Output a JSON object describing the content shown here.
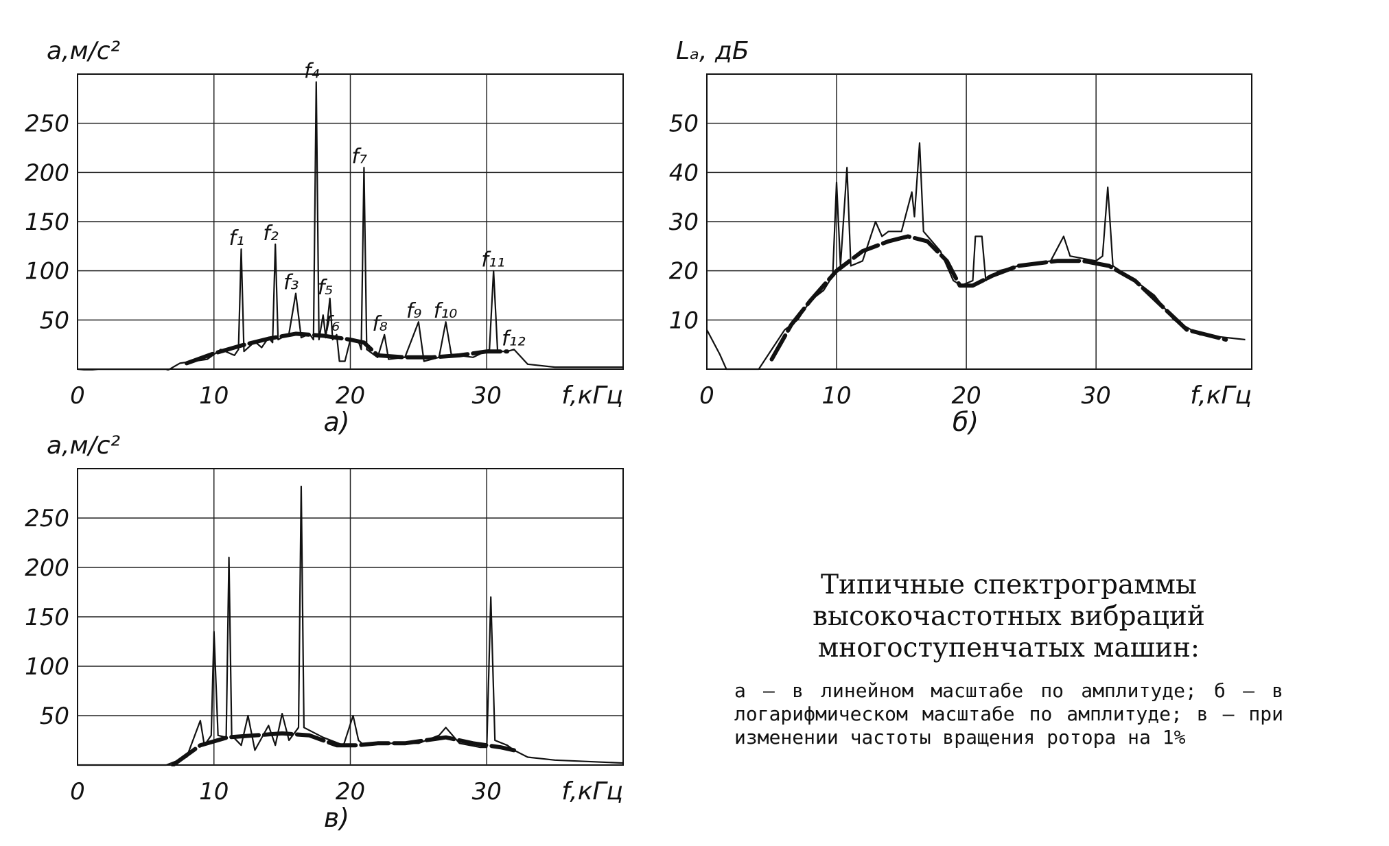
{
  "caption": {
    "title": "Типичные спектрограммы высокочастотных вибраций многоступенчатых машин:",
    "body": "а — в линейном масштабе по амплитуде; б — в логарифмическом масштабе по амплитуде; в — при изменении частоты вращения ротора на 1%"
  },
  "chart_data": [
    {
      "id": "a",
      "type": "line",
      "label": "а)",
      "ylabel": "a,м/с²",
      "xlabel": "f,кГц",
      "xlim": [
        0,
        40
      ],
      "ylim": [
        0,
        300
      ],
      "xticks": [
        0,
        10,
        20,
        30
      ],
      "yticks": [
        50,
        100,
        150,
        200,
        250
      ],
      "grid": true,
      "peaks": [
        {
          "label": "f₁",
          "x": 12,
          "y": 122
        },
        {
          "label": "f₂",
          "x": 14.5,
          "y": 127
        },
        {
          "label": "f₃",
          "x": 16,
          "y": 77
        },
        {
          "label": "f₄",
          "x": 17.5,
          "y": 292
        },
        {
          "label": "f₅",
          "x": 18.5,
          "y": 72
        },
        {
          "label": "f₆",
          "x": 19,
          "y": 35
        },
        {
          "label": "f₇",
          "x": 21,
          "y": 205
        },
        {
          "label": "f₈",
          "x": 22.5,
          "y": 35
        },
        {
          "label": "f₉",
          "x": 25,
          "y": 48
        },
        {
          "label": "f₁₀",
          "x": 27,
          "y": 48
        },
        {
          "label": "f₁₁",
          "x": 30.5,
          "y": 100
        },
        {
          "label": "f₁₂",
          "x": 32,
          "y": 20
        }
      ],
      "envelope": [
        [
          8,
          6
        ],
        [
          10,
          16
        ],
        [
          12,
          24
        ],
        [
          14,
          31
        ],
        [
          16,
          36
        ],
        [
          18,
          34
        ],
        [
          20,
          30
        ],
        [
          21,
          27
        ],
        [
          22,
          14
        ],
        [
          24,
          12
        ],
        [
          26,
          12
        ],
        [
          28,
          14
        ],
        [
          30,
          18
        ],
        [
          31.5,
          18
        ]
      ],
      "spectrum": [
        [
          0,
          0
        ],
        [
          1.5,
          -2
        ],
        [
          6.5,
          -2
        ],
        [
          7.5,
          6
        ],
        [
          8.5,
          8
        ],
        [
          9.5,
          10
        ],
        [
          10.5,
          20
        ],
        [
          11.5,
          14
        ],
        [
          11.8,
          20
        ],
        [
          12,
          122
        ],
        [
          12.2,
          18
        ],
        [
          13,
          28
        ],
        [
          13.5,
          22
        ],
        [
          14,
          32
        ],
        [
          14.3,
          27
        ],
        [
          14.5,
          127
        ],
        [
          14.7,
          30
        ],
        [
          15.5,
          36
        ],
        [
          16,
          77
        ],
        [
          16.4,
          32
        ],
        [
          17,
          36
        ],
        [
          17.3,
          30
        ],
        [
          17.5,
          292
        ],
        [
          17.7,
          30
        ],
        [
          18,
          55
        ],
        [
          18.2,
          32
        ],
        [
          18.5,
          72
        ],
        [
          18.7,
          30
        ],
        [
          19,
          35
        ],
        [
          19.2,
          8
        ],
        [
          19.6,
          8
        ],
        [
          20,
          30
        ],
        [
          20.6,
          28
        ],
        [
          20.8,
          20
        ],
        [
          21,
          205
        ],
        [
          21.2,
          20
        ],
        [
          22,
          12
        ],
        [
          22.5,
          35
        ],
        [
          22.8,
          10
        ],
        [
          24,
          12
        ],
        [
          25,
          48
        ],
        [
          25.4,
          8
        ],
        [
          26.5,
          12
        ],
        [
          27,
          48
        ],
        [
          27.4,
          15
        ],
        [
          29,
          12
        ],
        [
          30.2,
          20
        ],
        [
          30.5,
          100
        ],
        [
          30.8,
          18
        ],
        [
          31.5,
          18
        ],
        [
          32,
          20
        ],
        [
          33,
          5
        ],
        [
          35,
          2
        ],
        [
          40,
          2
        ]
      ]
    },
    {
      "id": "b",
      "type": "line",
      "label": "б)",
      "ylabel": "Lₐ, дБ",
      "xlabel": "f,кГц",
      "xlim": [
        0,
        42
      ],
      "ylim": [
        0,
        60
      ],
      "xticks": [
        0,
        10,
        20,
        30
      ],
      "yticks": [
        10,
        20,
        30,
        40,
        50
      ],
      "grid": true,
      "envelope": [
        [
          5,
          2
        ],
        [
          6.5,
          9
        ],
        [
          8,
          14
        ],
        [
          10,
          20
        ],
        [
          12,
          24
        ],
        [
          14,
          26
        ],
        [
          15.5,
          27
        ],
        [
          17,
          26
        ],
        [
          18.5,
          22
        ],
        [
          19.5,
          17
        ],
        [
          20.5,
          17
        ],
        [
          22,
          19
        ],
        [
          24,
          21
        ],
        [
          27,
          22
        ],
        [
          29,
          22
        ],
        [
          31,
          21
        ],
        [
          33,
          18
        ],
        [
          35,
          13
        ],
        [
          37,
          8
        ],
        [
          40,
          6
        ]
      ],
      "spectrum": [
        [
          0,
          8
        ],
        [
          1,
          3
        ],
        [
          1.5,
          0
        ],
        [
          4,
          0
        ],
        [
          6,
          8
        ],
        [
          7,
          10
        ],
        [
          8,
          14
        ],
        [
          9,
          16
        ],
        [
          9.7,
          19
        ],
        [
          10,
          38
        ],
        [
          10.3,
          21
        ],
        [
          10.8,
          41
        ],
        [
          11.1,
          21
        ],
        [
          12,
          22
        ],
        [
          13,
          30
        ],
        [
          13.5,
          27
        ],
        [
          14,
          28
        ],
        [
          15,
          28
        ],
        [
          15.8,
          36
        ],
        [
          16,
          31
        ],
        [
          16.4,
          46
        ],
        [
          16.7,
          28
        ],
        [
          18,
          24
        ],
        [
          19,
          18
        ],
        [
          19.6,
          17
        ],
        [
          20.5,
          18
        ],
        [
          20.7,
          27
        ],
        [
          21.2,
          27
        ],
        [
          21.5,
          18
        ],
        [
          22.5,
          20
        ],
        [
          24,
          21
        ],
        [
          26.5,
          22
        ],
        [
          27.5,
          27
        ],
        [
          28,
          23
        ],
        [
          30,
          22
        ],
        [
          30.5,
          23
        ],
        [
          30.9,
          37
        ],
        [
          31.3,
          21
        ],
        [
          33,
          18
        ],
        [
          34.5,
          15
        ],
        [
          36,
          10
        ],
        [
          38,
          7
        ],
        [
          41.5,
          6
        ]
      ]
    },
    {
      "id": "c",
      "type": "line",
      "label": "в)",
      "ylabel": "a,м/с²",
      "xlabel": "f,кГц",
      "xlim": [
        0,
        40
      ],
      "ylim": [
        0,
        300
      ],
      "xticks": [
        0,
        10,
        20,
        30
      ],
      "yticks": [
        50,
        100,
        150,
        200,
        250
      ],
      "grid": true,
      "envelope": [
        [
          7,
          0
        ],
        [
          9,
          20
        ],
        [
          11,
          28
        ],
        [
          13,
          30
        ],
        [
          15,
          32
        ],
        [
          17,
          30
        ],
        [
          19,
          20
        ],
        [
          20.5,
          20
        ],
        [
          22,
          22
        ],
        [
          24,
          22
        ],
        [
          27,
          28
        ],
        [
          29,
          22
        ],
        [
          31,
          18
        ],
        [
          32,
          15
        ]
      ],
      "spectrum": [
        [
          0,
          0
        ],
        [
          6.5,
          0
        ],
        [
          8,
          8
        ],
        [
          9,
          45
        ],
        [
          9.3,
          20
        ],
        [
          9.8,
          30
        ],
        [
          10,
          135
        ],
        [
          10.3,
          30
        ],
        [
          10.9,
          28
        ],
        [
          11.1,
          210
        ],
        [
          11.3,
          30
        ],
        [
          12,
          20
        ],
        [
          12.5,
          50
        ],
        [
          13,
          15
        ],
        [
          14,
          40
        ],
        [
          14.5,
          20
        ],
        [
          15,
          52
        ],
        [
          15.5,
          25
        ],
        [
          16.2,
          38
        ],
        [
          16.4,
          282
        ],
        [
          16.6,
          38
        ],
        [
          18,
          28
        ],
        [
          19.5,
          20
        ],
        [
          20.2,
          50
        ],
        [
          20.6,
          25
        ],
        [
          21,
          20
        ],
        [
          23,
          22
        ],
        [
          25,
          22
        ],
        [
          26.5,
          30
        ],
        [
          27,
          38
        ],
        [
          28,
          22
        ],
        [
          29.5,
          18
        ],
        [
          30,
          18
        ],
        [
          30.3,
          170
        ],
        [
          30.6,
          25
        ],
        [
          31.5,
          20
        ],
        [
          32,
          15
        ],
        [
          33,
          8
        ],
        [
          35,
          5
        ],
        [
          40,
          2
        ]
      ]
    }
  ]
}
